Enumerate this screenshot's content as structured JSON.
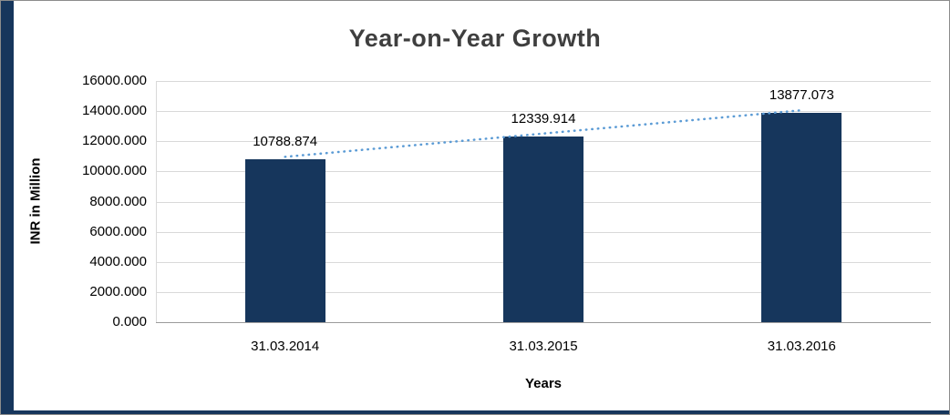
{
  "chart_data": {
    "type": "bar",
    "title": "Year-on-Year Growth",
    "xlabel": "Years",
    "ylabel": "INR in Million",
    "categories": [
      "31.03.2014",
      "31.03.2015",
      "31.03.2016"
    ],
    "values": [
      10788.874,
      12339.914,
      13877.073
    ],
    "data_labels": [
      "10788.874",
      "12339.914",
      "13877.073"
    ],
    "ylim": [
      0,
      16000
    ],
    "ytick_step": 2000,
    "ytick_labels": [
      "0.000",
      "2000.000",
      "4000.000",
      "6000.000",
      "8000.000",
      "10000.000",
      "12000.000",
      "14000.000",
      "16000.000"
    ],
    "grid": true,
    "legend": "none",
    "trendline": "linear-dotted",
    "colors": {
      "bar": "#16365c",
      "trendline": "#5b9bd5",
      "gridline": "#d9d9d9",
      "axis": "#9b9b9b",
      "title_text": "#3f3f3f",
      "text": "#000000",
      "accent_strip": "#16365c"
    }
  }
}
